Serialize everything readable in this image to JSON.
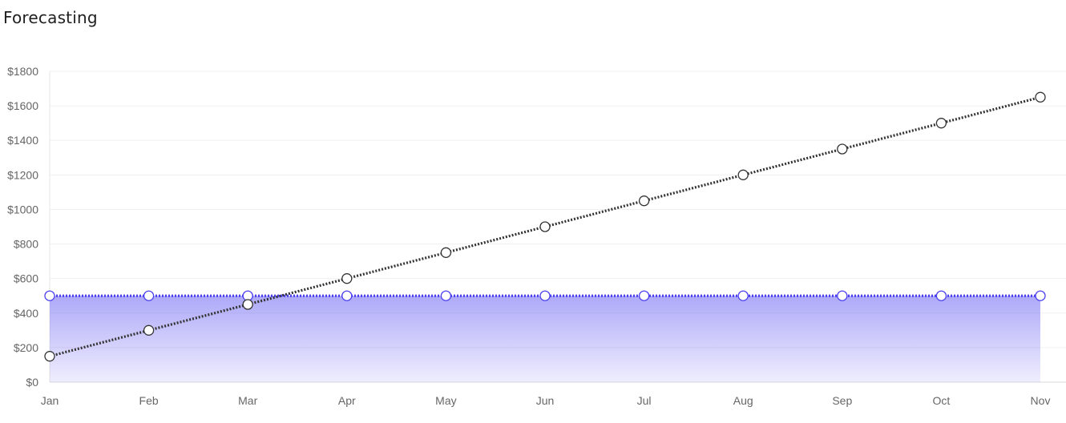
{
  "page_title": "Forecasting",
  "chart_data": {
    "type": "line",
    "title": "Forecasting",
    "categories": [
      "Jan",
      "Feb",
      "Mar",
      "Apr",
      "May",
      "Jun",
      "Jul",
      "Aug",
      "Sep",
      "Oct",
      "Nov"
    ],
    "ylim": [
      0,
      1800
    ],
    "yticks": [
      0,
      200,
      400,
      600,
      800,
      1000,
      1200,
      1400,
      1600,
      1800
    ],
    "y_tick_labels": [
      "$0",
      "$200",
      "$400",
      "$600",
      "$800",
      "$1000",
      "$1200",
      "$1400",
      "$1600",
      "$1800"
    ],
    "grid": true,
    "series": [
      {
        "values": [
          500,
          500,
          500,
          500,
          500,
          500,
          500,
          500,
          500,
          500,
          500
        ],
        "style": "dotted",
        "fill": "gradient-area",
        "color": "#4b3ff0",
        "fill_color": "#7b74f4"
      },
      {
        "values": [
          150,
          300,
          450,
          600,
          750,
          900,
          1050,
          1200,
          1350,
          1500,
          1650
        ],
        "style": "dotted",
        "fill": "none",
        "color": "#333333"
      }
    ]
  }
}
